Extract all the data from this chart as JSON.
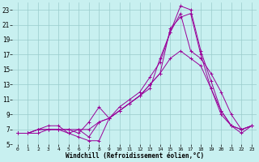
{
  "xlabel": "Windchill (Refroidissement éolien,°C)",
  "background_color": "#c8f0f0",
  "grid_color": "#99cccc",
  "line_color": "#990099",
  "xlim": [
    -0.5,
    23.5
  ],
  "ylim": [
    5,
    24
  ],
  "xticks": [
    0,
    1,
    2,
    3,
    4,
    5,
    6,
    7,
    8,
    9,
    10,
    11,
    12,
    13,
    14,
    15,
    16,
    17,
    18,
    19,
    20,
    21,
    22,
    23
  ],
  "yticks": [
    5,
    7,
    9,
    11,
    13,
    15,
    17,
    19,
    21,
    23
  ],
  "series": [
    [
      6.5,
      6.5,
      7.0,
      7.0,
      7.0,
      6.5,
      6.0,
      5.5,
      5.5,
      8.5,
      9.5,
      10.5,
      11.5,
      13.0,
      14.5,
      16.5,
      17.5,
      16.5,
      15.5,
      12.5,
      9.0,
      7.5,
      6.5,
      7.5
    ],
    [
      6.5,
      6.5,
      6.5,
      7.0,
      7.0,
      7.0,
      6.5,
      8.0,
      10.0,
      8.5,
      9.5,
      10.5,
      11.5,
      12.5,
      16.5,
      20.0,
      22.5,
      17.5,
      16.5,
      14.5,
      12.0,
      9.0,
      7.0,
      7.5
    ],
    [
      6.5,
      6.5,
      7.0,
      7.0,
      7.0,
      7.0,
      7.0,
      7.0,
      8.0,
      8.5,
      9.5,
      10.5,
      11.5,
      13.0,
      14.5,
      20.5,
      22.0,
      22.5,
      17.0,
      12.5,
      9.5,
      7.5,
      7.0,
      7.5
    ],
    [
      6.5,
      6.5,
      7.0,
      7.5,
      7.5,
      6.5,
      7.0,
      6.0,
      8.0,
      8.5,
      10.0,
      11.0,
      12.0,
      14.0,
      16.0,
      20.0,
      23.5,
      23.0,
      17.5,
      13.5,
      9.5,
      7.5,
      7.0,
      7.5
    ]
  ]
}
